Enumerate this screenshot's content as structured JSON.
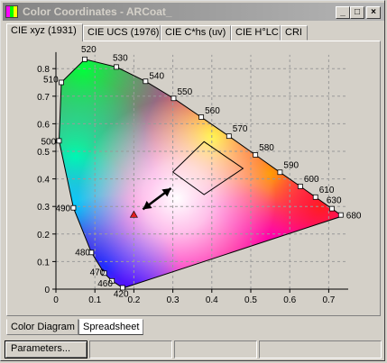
{
  "window": {
    "title": "Color Coordinates - ARCoat_"
  },
  "title_buttons": {
    "minimize": "_",
    "maximize": "□",
    "close": "×"
  },
  "tabs_top": [
    {
      "label": "CIE xyz (1931)",
      "active": true
    },
    {
      "label": "CIE UCS (1976)",
      "active": false
    },
    {
      "label": "CIE C*hs (uv)",
      "active": false
    },
    {
      "label": "CIE H°LC",
      "active": false
    },
    {
      "label": "CRI",
      "active": false
    }
  ],
  "chart_data": {
    "type": "scatter",
    "title": "",
    "xlabel": "",
    "ylabel": "",
    "xlim": [
      0,
      0.75
    ],
    "ylim": [
      0,
      0.85
    ],
    "x_ticks": [
      "0",
      "0.1",
      "0.2",
      "0.3",
      "0.4",
      "0.5",
      "0.6",
      "0.7"
    ],
    "y_ticks": [
      "0",
      "0.1",
      "0.2",
      "0.3",
      "0.4",
      "0.5",
      "0.6",
      "0.7",
      "0.8"
    ],
    "grid": true,
    "wavelength_labels": [
      {
        "label": "420",
        "x": 0.171,
        "y": 0.005
      },
      {
        "label": "460",
        "x": 0.144,
        "y": 0.03
      },
      {
        "label": "470",
        "x": 0.124,
        "y": 0.058
      },
      {
        "label": "480",
        "x": 0.091,
        "y": 0.133
      },
      {
        "label": "490",
        "x": 0.045,
        "y": 0.295
      },
      {
        "label": "500",
        "x": 0.008,
        "y": 0.538
      },
      {
        "label": "510",
        "x": 0.014,
        "y": 0.75
      },
      {
        "label": "520",
        "x": 0.074,
        "y": 0.834
      },
      {
        "label": "530",
        "x": 0.155,
        "y": 0.806
      },
      {
        "label": "540",
        "x": 0.23,
        "y": 0.754
      },
      {
        "label": "550",
        "x": 0.302,
        "y": 0.692
      },
      {
        "label": "560",
        "x": 0.373,
        "y": 0.624
      },
      {
        "label": "570",
        "x": 0.444,
        "y": 0.555
      },
      {
        "label": "580",
        "x": 0.512,
        "y": 0.487
      },
      {
        "label": "590",
        "x": 0.575,
        "y": 0.424
      },
      {
        "label": "600",
        "x": 0.627,
        "y": 0.373
      },
      {
        "label": "610",
        "x": 0.666,
        "y": 0.334
      },
      {
        "label": "630",
        "x": 0.708,
        "y": 0.292
      },
      {
        "label": "680",
        "x": 0.731,
        "y": 0.269
      }
    ],
    "locus_extra_points": [
      {
        "x": 0.735,
        "y": 0.265
      },
      {
        "x": 0.175,
        "y": 0.005
      }
    ],
    "highlight_region": [
      {
        "x": 0.3,
        "y": 0.425
      },
      {
        "x": 0.38,
        "y": 0.535
      },
      {
        "x": 0.48,
        "y": 0.438
      },
      {
        "x": 0.38,
        "y": 0.343
      }
    ],
    "white_point": {
      "x": 0.31,
      "y": 0.33
    },
    "sample_point": {
      "x": 0.2,
      "y": 0.27
    },
    "colors": {
      "grid": "#9a9a9a",
      "outline": "#000000",
      "sample_point": "#e02020"
    }
  },
  "tabs_bottom": [
    {
      "label": "Color Diagram",
      "active": false
    },
    {
      "label": "Spreadsheet",
      "active": true
    }
  ],
  "status": {
    "parameters_button": "Parameters..."
  }
}
